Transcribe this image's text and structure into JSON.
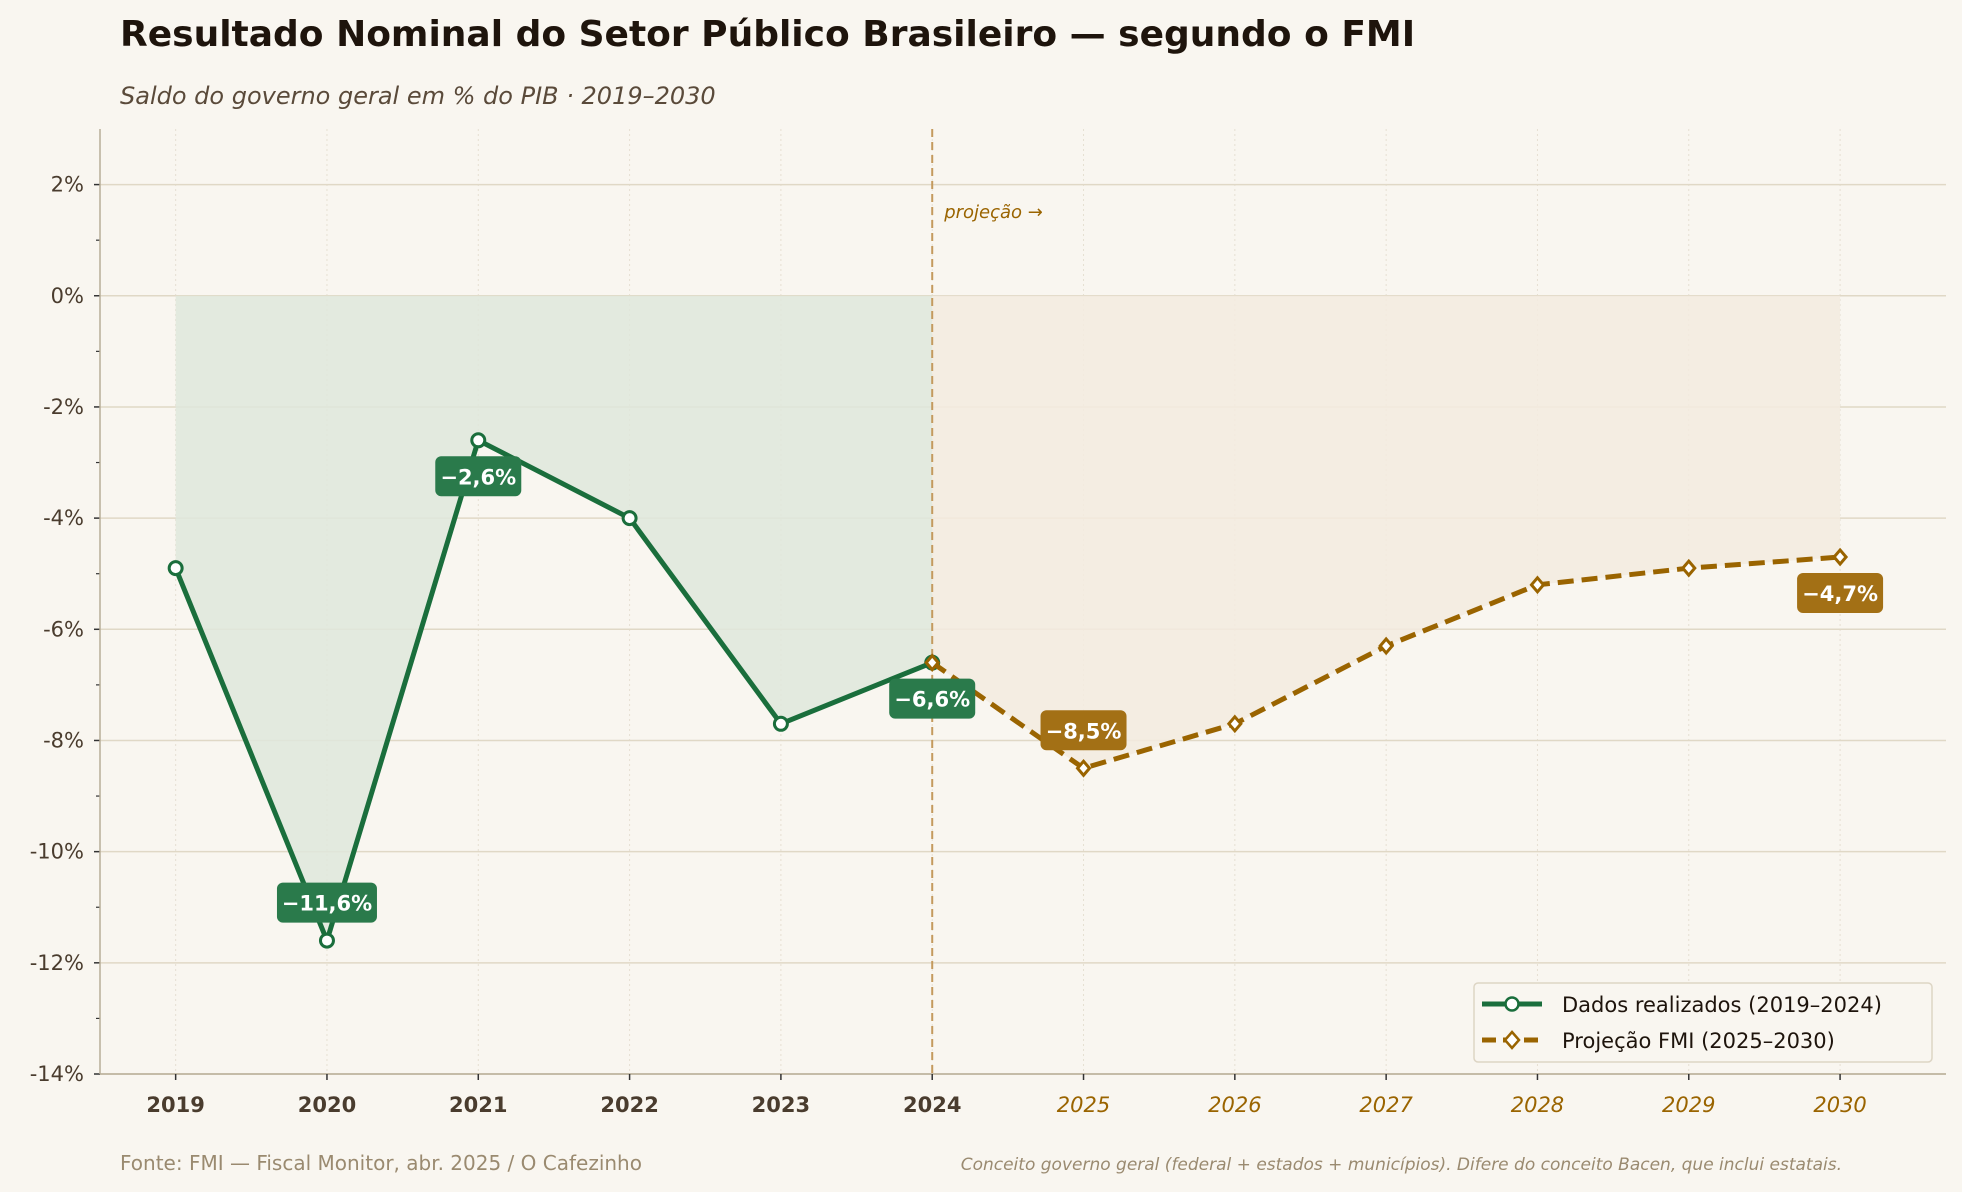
{
  "chart_data": {
    "type": "line",
    "title": "Resultado Nominal do Setor Público Brasileiro — segundo o FMI",
    "subtitle": "Saldo do governo geral em % do PIB · 2019–2030",
    "xlabel": "",
    "ylabel": "",
    "ylim": [
      -14,
      3
    ],
    "xlim": [
      2018.5,
      2030.7
    ],
    "yticks": [
      2,
      0,
      -2,
      -4,
      -6,
      -8,
      -10,
      -12,
      -14
    ],
    "ytick_labels": [
      "2%",
      "0%",
      "-2%",
      "-4%",
      "-6%",
      "-8%",
      "-10%",
      "-12%",
      "-14%"
    ],
    "xticks": [
      "2019",
      "2020",
      "2021",
      "2022",
      "2023",
      "2024",
      "2025",
      "2026",
      "2027",
      "2028",
      "2029",
      "2030"
    ],
    "grid": true,
    "projection_start": 2024,
    "projection_note": "projeção →",
    "series": [
      {
        "name": "Dados realizados (2019–2024)",
        "style": "solid",
        "marker": "circle",
        "color": "#1a6e3c",
        "fill": "#dfe7dc",
        "x": [
          2019,
          2020,
          2021,
          2022,
          2023,
          2024
        ],
        "values": [
          -4.9,
          -11.6,
          -2.6,
          -4.0,
          -7.7,
          -6.6
        ]
      },
      {
        "name": "Projeção FMI (2025–2030)",
        "style": "dashed",
        "marker": "diamond",
        "color": "#9a6400",
        "fill": "#f3ebdf",
        "x": [
          2024,
          2025,
          2026,
          2027,
          2028,
          2029,
          2030
        ],
        "values": [
          -6.6,
          -8.5,
          -7.7,
          -6.3,
          -5.2,
          -4.9,
          -4.7
        ]
      }
    ],
    "annotations": [
      {
        "x": 2020,
        "text": "−11,6%",
        "color": "#2a7a4b",
        "position": "above"
      },
      {
        "x": 2021,
        "text": "−2,6%",
        "color": "#2a7a4b",
        "position": "below"
      },
      {
        "x": 2024,
        "text": "−6,6%",
        "color": "#2a7a4b",
        "position": "below"
      },
      {
        "x": 2025,
        "text": "−8,5%",
        "color": "#a37015",
        "position": "above"
      },
      {
        "x": 2030,
        "text": "−4,7%",
        "color": "#a37015",
        "position": "below"
      }
    ],
    "legend_position": "bottom-right",
    "source": "Fonte: FMI — Fiscal Monitor, abr. 2025  /  O Cafezinho",
    "footnote": "Conceito governo geral (federal + estados + municípios). Difere do conceito Bacen, que inclui estatais."
  }
}
